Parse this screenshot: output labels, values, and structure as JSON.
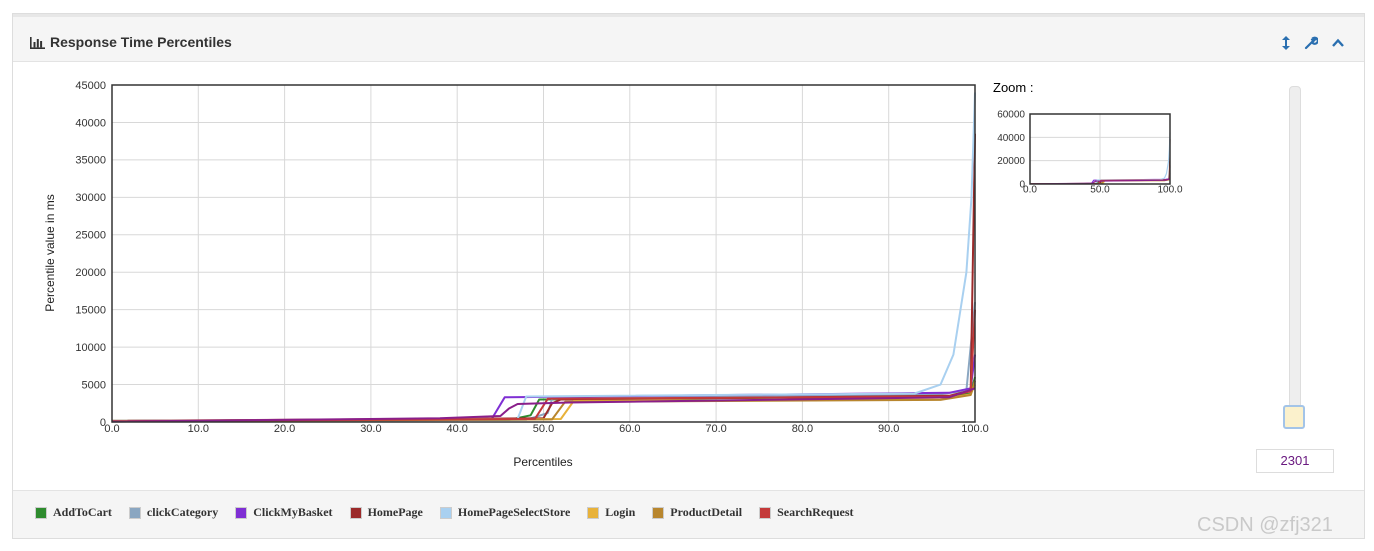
{
  "panel": {
    "title": "Response Time Percentiles",
    "title_icon": "bar-chart-icon",
    "header_icons": [
      "resize-vertical-icon",
      "wrench-icon",
      "chevron-up-icon"
    ]
  },
  "chart_data": [
    {
      "type": "line",
      "title": "",
      "xlabel": "Percentiles",
      "ylabel": "Percentile value in ms",
      "xlim": [
        0,
        100
      ],
      "ylim": [
        0,
        45000
      ],
      "xticks": [
        "0.0",
        "10.0",
        "20.0",
        "30.0",
        "40.0",
        "50.0",
        "60.0",
        "70.0",
        "80.0",
        "90.0",
        "100.0"
      ],
      "yticks": [
        "0",
        "5000",
        "10000",
        "15000",
        "20000",
        "25000",
        "30000",
        "35000",
        "40000",
        "45000"
      ],
      "grid": true,
      "series": [
        {
          "name": "AddToCart",
          "color": "#2e8b2e",
          "points": [
            [
              0,
              150
            ],
            [
              46,
              280
            ],
            [
              48.5,
              900
            ],
            [
              49.5,
              3000
            ],
            [
              97,
              3400
            ],
            [
              99.5,
              3800
            ],
            [
              100,
              6000
            ]
          ]
        },
        {
          "name": "clickCategory",
          "color": "#8aa6c1",
          "points": [
            [
              0,
              120
            ],
            [
              48,
              300
            ],
            [
              50.5,
              1200
            ],
            [
              51,
              3100
            ],
            [
              96,
              3700
            ],
            [
              99,
              4200
            ],
            [
              100,
              16000
            ]
          ]
        },
        {
          "name": "ClickMyBasket",
          "color": "#7f2fd4",
          "points": [
            [
              0,
              80
            ],
            [
              44,
              400
            ],
            [
              45.5,
              3300
            ],
            [
              97,
              3900
            ],
            [
              99.5,
              4500
            ],
            [
              100,
              9000
            ]
          ]
        },
        {
          "name": "HomePage",
          "color": "#9b2a2a",
          "points": [
            [
              0,
              150
            ],
            [
              50,
              500
            ],
            [
              51,
              2500
            ],
            [
              52,
              3000
            ],
            [
              97,
              3500
            ],
            [
              99.5,
              4200
            ],
            [
              100,
              38500
            ]
          ]
        },
        {
          "name": "HomePageSelectStore",
          "color": "#a9d0f0",
          "points": [
            [
              0,
              120
            ],
            [
              47,
              400
            ],
            [
              48,
              3400
            ],
            [
              93,
              3800
            ],
            [
              96,
              5000
            ],
            [
              97.5,
              9000
            ],
            [
              99,
              20000
            ],
            [
              99.6,
              30000
            ],
            [
              100,
              44000
            ]
          ]
        },
        {
          "name": "Login",
          "color": "#e8b23a",
          "points": [
            [
              0,
              100
            ],
            [
              52,
              400
            ],
            [
              53.5,
              2800
            ],
            [
              96,
              3000
            ],
            [
              99.5,
              3700
            ],
            [
              100,
              5000
            ]
          ]
        },
        {
          "name": "ProductDetail",
          "color": "#b8862e",
          "points": [
            [
              0,
              90
            ],
            [
              51,
              350
            ],
            [
              52.5,
              2700
            ],
            [
              96,
              2950
            ],
            [
              99.5,
              3600
            ],
            [
              100,
              5500
            ]
          ]
        },
        {
          "name": "SearchRequest",
          "color": "#c43a3a",
          "points": [
            [
              0,
              110
            ],
            [
              49,
              420
            ],
            [
              50.5,
              3100
            ],
            [
              97,
              3400
            ],
            [
              99.5,
              4100
            ],
            [
              100,
              15000
            ]
          ]
        },
        {
          "name": "",
          "color": "#8a1f8a",
          "points": [
            [
              0,
              60
            ],
            [
              38,
              500
            ],
            [
              45,
              800
            ],
            [
              46,
              1800
            ],
            [
              47,
              2400
            ],
            [
              53,
              2600
            ],
            [
              97,
              3300
            ],
            [
              100,
              4500
            ]
          ]
        }
      ]
    },
    {
      "type": "line",
      "title": "Zoom :",
      "xlim": [
        0,
        100
      ],
      "ylim": [
        0,
        60000
      ],
      "xticks": [
        "0.0",
        "50.0",
        "100.0"
      ],
      "yticks": [
        "0",
        "20000",
        "40000",
        "60000"
      ],
      "grid": true
    }
  ],
  "slider": {
    "value": "2301"
  },
  "watermark": "CSDN @zfj321"
}
